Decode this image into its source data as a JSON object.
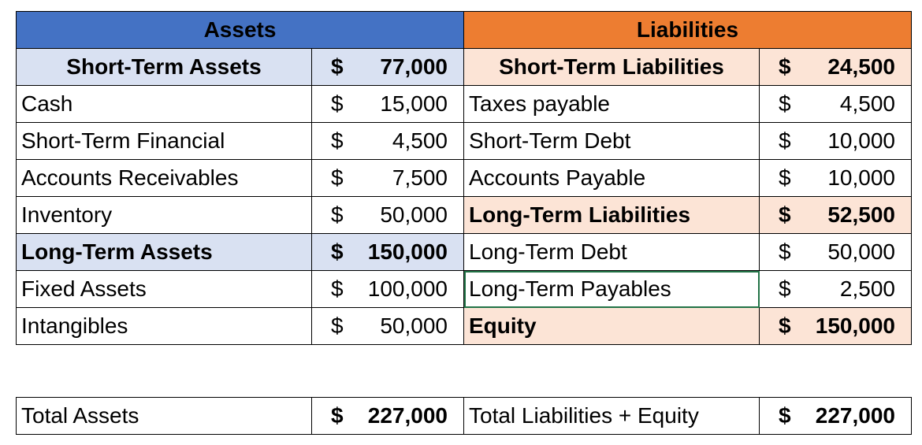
{
  "headers": {
    "assets": "Assets",
    "liabilities": "Liabilities"
  },
  "currency": "$",
  "rows": [
    {
      "a_label": "Short-Term Assets",
      "a_value": "77,000",
      "a_style": "section",
      "l_label": "Short-Term Liabilities",
      "l_value": "24,500",
      "l_style": "section"
    },
    {
      "a_label": "Cash",
      "a_value": "15,000",
      "l_label": "Taxes payable",
      "l_value": "4,500"
    },
    {
      "a_label": "Short-Term Financial",
      "a_value": "4,500",
      "l_label": "Short-Term Debt",
      "l_value": "10,000"
    },
    {
      "a_label": "Accounts Receivables",
      "a_value": "7,500",
      "l_label": "Accounts Payable",
      "l_value": "10,000"
    },
    {
      "a_label": "Inventory",
      "a_value": "50,000",
      "l_label": "Long-Term Liabilities",
      "l_value": "52,500",
      "l_style": "section"
    },
    {
      "a_label": "Long-Term Assets",
      "a_value": "150,000",
      "a_style": "section",
      "l_label": "Long-Term Debt",
      "l_value": "50,000"
    },
    {
      "a_label": "Fixed Assets",
      "a_value": "100,000",
      "l_label": "Long-Term Payables",
      "l_value": "2,500",
      "l_selected": true
    },
    {
      "a_label": "Intangibles",
      "a_value": "50,000",
      "l_label": "Equity",
      "l_value": "150,000",
      "l_style": "section"
    }
  ],
  "totals": {
    "a_label": "Total Assets",
    "a_value": "227,000",
    "l_label": "Total Liabilities + Equity",
    "l_value": "227,000"
  },
  "colors": {
    "assets_header": "#4472C4",
    "liabilities_header": "#ED7D31",
    "assets_section": "#D9E1F2",
    "liabilities_section": "#FCE4D6",
    "selection": "#217346"
  }
}
